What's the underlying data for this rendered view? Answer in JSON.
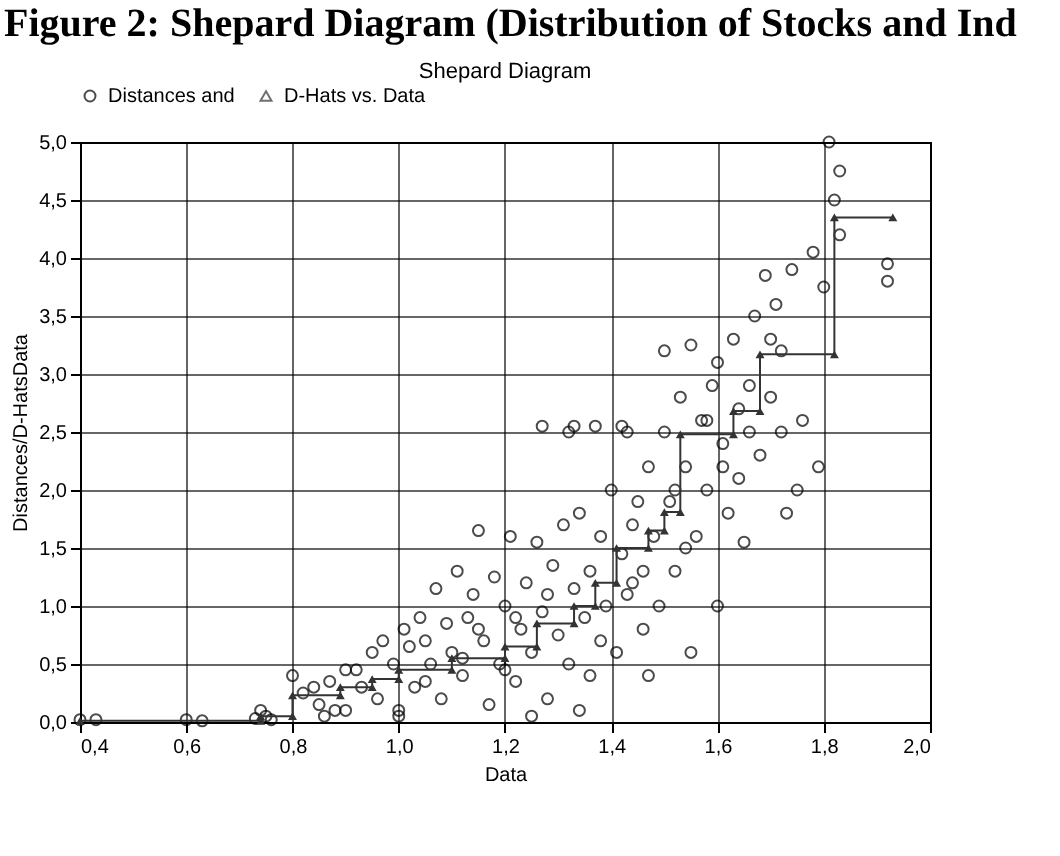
{
  "chart_data": {
    "type": "scatter",
    "title": "Figure 2: Shepard Diagram (Distribution of Stocks and Ind",
    "subtitle": "Shepard Diagram",
    "xlabel": "Data",
    "ylabel": "Distances/D-HatsData",
    "xlim": [
      0.4,
      2.0
    ],
    "ylim": [
      0,
      5
    ],
    "xticks": [
      {
        "value": 0.4,
        "label": "0,4"
      },
      {
        "value": 0.6,
        "label": "0,6"
      },
      {
        "value": 0.8,
        "label": "0,8"
      },
      {
        "value": 1.0,
        "label": "1,0"
      },
      {
        "value": 1.2,
        "label": "1,2"
      },
      {
        "value": 1.4,
        "label": "1,4"
      },
      {
        "value": 1.6,
        "label": "1,6"
      },
      {
        "value": 1.8,
        "label": "1,8"
      },
      {
        "value": 2.0,
        "label": "2,0"
      }
    ],
    "yticks": [
      {
        "value": 0,
        "label": "0,0"
      },
      {
        "value": 0.5,
        "label": "0,5"
      },
      {
        "value": 1.0,
        "label": "1,0"
      },
      {
        "value": 1.5,
        "label": "1,5"
      },
      {
        "value": 2.0,
        "label": "2,0"
      },
      {
        "value": 2.5,
        "label": "2,5"
      },
      {
        "value": 3.0,
        "label": "3,0"
      },
      {
        "value": 3.5,
        "label": "3,5"
      },
      {
        "value": 4.0,
        "label": "4,0"
      },
      {
        "value": 4.5,
        "label": "4,5"
      },
      {
        "value": 5.0,
        "label": "5,0"
      }
    ],
    "grid": true,
    "legend": "top",
    "series": [
      {
        "name": "Distances and",
        "marker": "circle",
        "color": "#000000",
        "x": [
          0.4,
          0.43,
          0.6,
          0.63,
          0.74,
          0.75,
          0.73,
          0.76,
          0.8,
          0.82,
          0.84,
          0.85,
          0.87,
          0.88,
          0.86,
          0.9,
          0.92,
          0.93,
          0.95,
          0.96,
          0.97,
          0.99,
          1.0,
          1.01,
          1.02,
          1.03,
          1.04,
          1.05,
          1.06,
          1.07,
          1.08,
          1.09,
          1.1,
          1.11,
          1.12,
          1.13,
          1.14,
          1.15,
          1.16,
          1.17,
          1.18,
          1.19,
          1.2,
          1.21,
          1.22,
          1.23,
          1.24,
          1.25,
          1.26,
          1.27,
          1.28,
          1.29,
          1.3,
          1.31,
          1.32,
          1.33,
          1.34,
          1.35,
          1.36,
          1.37,
          1.38,
          1.39,
          1.4,
          1.41,
          1.42,
          1.43,
          1.44,
          1.45,
          1.46,
          1.47,
          1.48,
          1.49,
          1.5,
          1.5,
          1.51,
          1.52,
          1.53,
          1.54,
          1.55,
          1.55,
          1.56,
          1.57,
          1.58,
          1.59,
          1.6,
          1.6,
          1.61,
          1.62,
          1.63,
          1.64,
          1.65,
          1.66,
          1.67,
          1.68,
          1.69,
          1.7,
          1.71,
          1.72,
          1.73,
          1.74,
          1.75,
          1.76,
          1.78,
          1.79,
          1.8,
          1.81,
          1.83,
          1.82,
          1.83,
          1.92,
          1.92,
          1.0,
          0.9,
          1.25,
          1.34,
          1.47,
          1.27,
          1.32,
          1.33,
          1.42,
          1.43,
          1.15,
          1.05,
          1.12,
          1.2,
          1.22,
          1.28,
          1.36,
          1.38,
          1.44,
          1.46,
          1.52,
          1.54,
          1.58,
          1.61,
          1.64,
          1.66,
          1.7,
          1.72
        ],
        "values": [
          0.02,
          0.02,
          0.02,
          0.01,
          0.1,
          0.05,
          0.03,
          0.02,
          0.4,
          0.25,
          0.3,
          0.15,
          0.35,
          0.1,
          0.05,
          0.45,
          0.45,
          0.3,
          0.6,
          0.2,
          0.7,
          0.5,
          0.1,
          0.8,
          0.65,
          0.3,
          0.9,
          0.7,
          0.5,
          1.15,
          0.2,
          0.85,
          0.6,
          1.3,
          0.4,
          0.9,
          1.1,
          1.65,
          0.7,
          0.15,
          1.25,
          0.5,
          1.0,
          1.6,
          0.35,
          0.8,
          1.2,
          0.6,
          1.55,
          0.95,
          0.2,
          1.35,
          0.75,
          1.7,
          0.5,
          1.15,
          1.8,
          0.9,
          0.4,
          2.55,
          1.6,
          1.0,
          2.0,
          0.6,
          1.45,
          2.5,
          1.2,
          1.9,
          0.8,
          2.2,
          1.6,
          1.0,
          2.5,
          3.2,
          1.9,
          1.3,
          2.8,
          2.2,
          0.6,
          3.25,
          1.6,
          2.6,
          2.0,
          2.9,
          3.1,
          1.0,
          2.4,
          1.8,
          3.3,
          2.1,
          1.55,
          2.9,
          3.5,
          2.3,
          3.85,
          2.8,
          3.6,
          2.5,
          1.8,
          3.9,
          2.0,
          2.6,
          4.05,
          2.2,
          3.75,
          5.0,
          4.75,
          4.5,
          4.2,
          3.8,
          3.95,
          0.05,
          0.1,
          0.05,
          0.1,
          0.4,
          2.55,
          2.5,
          2.55,
          2.55,
          1.1,
          0.8,
          0.35,
          0.55,
          0.45,
          0.9,
          1.1,
          1.3,
          0.7,
          1.7,
          1.3,
          2.0,
          1.5,
          2.6,
          2.2,
          2.7,
          2.5,
          3.3,
          3.2
        ]
      },
      {
        "name": "D-Hats vs. Data",
        "type": "line",
        "marker": "triangle",
        "color": "#333333",
        "x": [
          0.4,
          0.74,
          0.74,
          0.8,
          0.8,
          0.89,
          0.89,
          0.95,
          0.95,
          1.0,
          1.0,
          1.1,
          1.1,
          1.2,
          1.2,
          1.26,
          1.26,
          1.33,
          1.33,
          1.37,
          1.37,
          1.41,
          1.41,
          1.47,
          1.47,
          1.5,
          1.5,
          1.53,
          1.53,
          1.63,
          1.63,
          1.68,
          1.68,
          1.82,
          1.82,
          1.93
        ],
        "values": [
          0.01,
          0.01,
          0.05,
          0.05,
          0.23,
          0.23,
          0.3,
          0.3,
          0.37,
          0.37,
          0.45,
          0.45,
          0.55,
          0.55,
          0.65,
          0.65,
          0.85,
          0.85,
          1.0,
          1.0,
          1.2,
          1.2,
          1.5,
          1.5,
          1.65,
          1.65,
          1.81,
          1.81,
          2.48,
          2.48,
          2.68,
          2.68,
          3.17,
          3.17,
          4.35,
          4.35
        ]
      }
    ]
  }
}
